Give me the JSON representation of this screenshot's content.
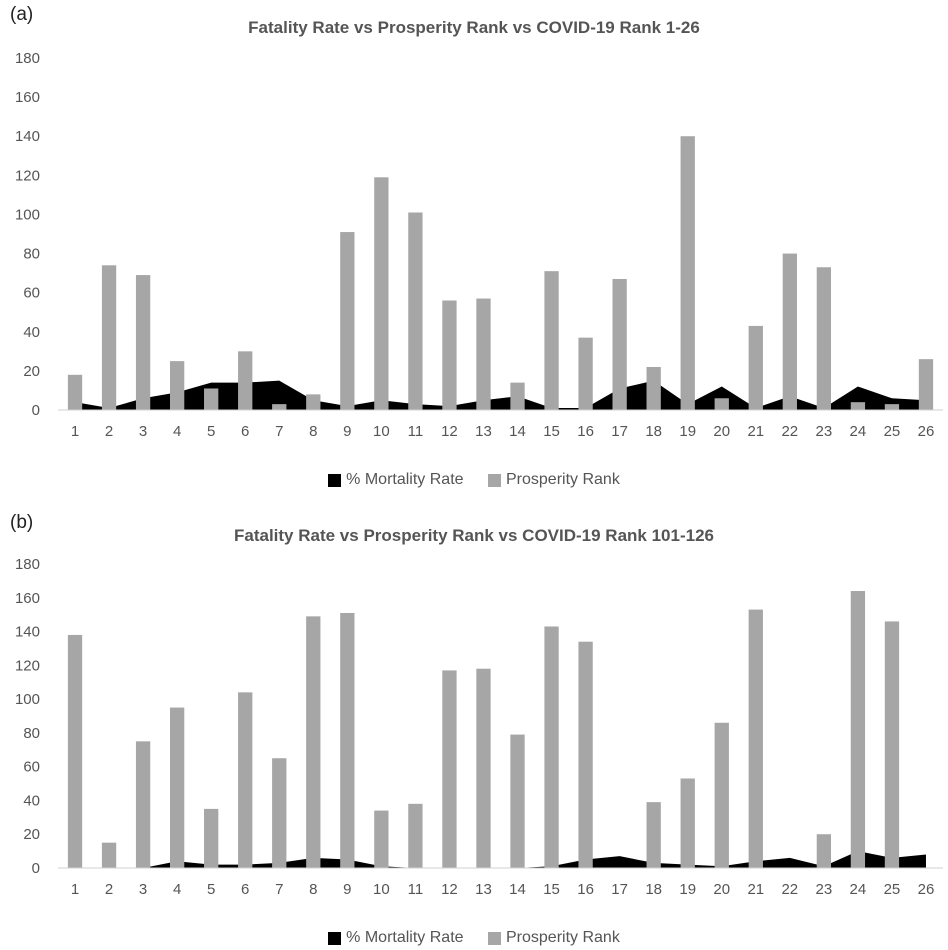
{
  "chart_data": [
    {
      "type": "bar+area",
      "panel_label": "(a)",
      "title": "Fatality Rate vs Prosperity Rank vs COVID-19 Rank 1-26",
      "categories": [
        "1",
        "2",
        "3",
        "4",
        "5",
        "6",
        "7",
        "8",
        "9",
        "10",
        "11",
        "12",
        "13",
        "14",
        "15",
        "16",
        "17",
        "18",
        "19",
        "20",
        "21",
        "22",
        "23",
        "24",
        "25",
        "26"
      ],
      "ylim": [
        0,
        180
      ],
      "yticks": [
        "0",
        "20",
        "40",
        "60",
        "80",
        "100",
        "120",
        "140",
        "160",
        "180"
      ],
      "series": [
        {
          "name": "% Mortality Rate",
          "type": "area",
          "color": "#000000",
          "values": [
            4,
            1,
            6,
            9,
            14,
            14,
            15,
            5,
            2,
            5,
            3,
            2,
            5,
            7,
            1,
            1,
            11,
            15,
            3,
            12,
            1,
            7,
            1,
            12,
            6,
            5
          ]
        },
        {
          "name": "Prosperity Rank",
          "type": "bar",
          "color": "#a6a6a6",
          "values": [
            18,
            74,
            69,
            25,
            11,
            30,
            3,
            8,
            91,
            119,
            101,
            56,
            57,
            14,
            71,
            37,
            67,
            22,
            140,
            6,
            43,
            80,
            73,
            4,
            3,
            26
          ]
        }
      ],
      "legend": "bottom",
      "grid": false
    },
    {
      "type": "bar+area",
      "panel_label": "(b)",
      "title": "Fatality Rate vs Prosperity Rank vs COVID-19 Rank 101-126",
      "categories": [
        "1",
        "2",
        "3",
        "4",
        "5",
        "6",
        "7",
        "8",
        "9",
        "10",
        "11",
        "12",
        "13",
        "14",
        "15",
        "16",
        "17",
        "18",
        "19",
        "20",
        "21",
        "22",
        "23",
        "24",
        "25",
        "26"
      ],
      "ylim": [
        0,
        180
      ],
      "yticks": [
        "0",
        "20",
        "40",
        "60",
        "80",
        "100",
        "120",
        "140",
        "160",
        "180"
      ],
      "series": [
        {
          "name": "% Mortality Rate",
          "type": "area",
          "color": "#000000",
          "values": [
            0,
            0,
            0,
            4,
            2,
            2,
            3,
            6,
            5,
            1,
            0,
            0,
            0,
            0,
            1,
            5,
            7,
            3,
            2,
            1,
            4,
            6,
            1,
            10,
            6,
            8
          ]
        },
        {
          "name": "Prosperity Rank",
          "type": "bar",
          "color": "#a6a6a6",
          "values": [
            138,
            15,
            75,
            95,
            35,
            104,
            65,
            149,
            151,
            34,
            38,
            117,
            118,
            79,
            143,
            134,
            0,
            39,
            53,
            86,
            153,
            0,
            20,
            164,
            146,
            0
          ]
        }
      ],
      "legend": "bottom",
      "grid": false
    }
  ]
}
